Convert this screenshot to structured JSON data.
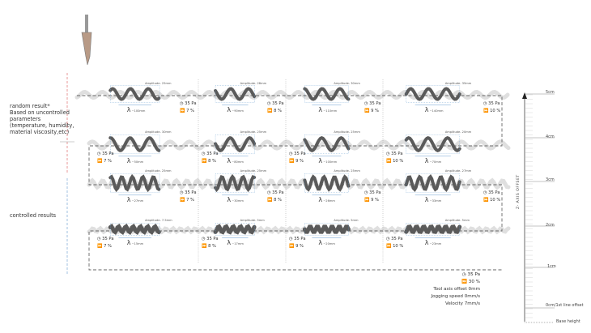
{
  "notes": {
    "random": [
      "random result*",
      "Based on uncontrolled",
      "parameters",
      "(temperature, humidity,",
      "material viscosity,etc)"
    ],
    "controlled": "controlled results"
  },
  "rows": [
    {
      "cells": [
        {
          "amplitude": "Amplitude- 25mm",
          "lambda": "~100mm",
          "pressure": "35 Pa",
          "speed": "7 %"
        },
        {
          "amplitude": "Amplitude- 28mm",
          "lambda": "~90mm",
          "pressure": "35 Pa",
          "speed": "8 %"
        },
        {
          "amplitude": "Amplitude- 30mm",
          "lambda": "~110mm",
          "pressure": "35 Pa",
          "speed": "9 %"
        },
        {
          "amplitude": "Amplitude- 35mm",
          "lambda": "~140mm",
          "pressure": "35 Pa",
          "speed": "10 %"
        }
      ]
    },
    {
      "cells": [
        {
          "amplitude": "Amplitude- 30mm",
          "lambda": "~50mm",
          "pressure": "35 Pa",
          "speed": "7 %"
        },
        {
          "amplitude": "Amplitude- 25mm",
          "lambda": "~80mm",
          "pressure": "35 Pa",
          "speed": "8 %"
        },
        {
          "amplitude": "Amplitude- 25mm",
          "lambda": "~100mm",
          "pressure": "35 Pa",
          "speed": "9 %"
        },
        {
          "amplitude": "Amplitude- 20mm",
          "lambda": "~70mm",
          "pressure": "35 Pa",
          "speed": "10 %"
        }
      ]
    },
    {
      "cells": [
        {
          "amplitude": "Amplitude- 25mm",
          "lambda": "~27mm",
          "pressure": "35 Pa",
          "speed": "7 %"
        },
        {
          "amplitude": "Amplitude- 25mm",
          "lambda": "~30mm",
          "pressure": "35 Pa",
          "speed": "8 %"
        },
        {
          "amplitude": "Amplitude- 25mm",
          "lambda": "~26mm",
          "pressure": "35 Pa",
          "speed": "9 %"
        },
        {
          "amplitude": "Amplitude- 27mm",
          "lambda": "~33mm",
          "pressure": "35 Pa",
          "speed": "10 %"
        }
      ]
    },
    {
      "cells": [
        {
          "amplitude": "Amplitude- 7.5mm",
          "lambda": "~15mm",
          "pressure": "35 Pa",
          "speed": "7 %"
        },
        {
          "amplitude": "Amplitude- 5mm",
          "lambda": "~17mm",
          "pressure": "35 Pa",
          "speed": "8 %"
        },
        {
          "amplitude": "Amplitude- 5mm",
          "lambda": "~20mm",
          "pressure": "35 Pa",
          "speed": "9 %"
        },
        {
          "amplitude": "Amplitude- 5mm",
          "lambda": "~23mm",
          "pressure": "35 Pa",
          "speed": "10 %"
        }
      ]
    }
  ],
  "lambda_symbol": "λ",
  "final": {
    "pressure": "35 Pa",
    "speed": "30 %",
    "lines": [
      "Tool axis offset 0mm",
      "Jogging speed 0mm/s",
      "Velocity 7mm/s"
    ]
  },
  "axis": {
    "title": "Z- AXIS OFFSET",
    "ticks": [
      "5cm",
      "4cm",
      "3cm",
      "2cm",
      "1cm",
      "0cm/1st line offset"
    ],
    "base": "Base height"
  },
  "icons": {
    "pressure": "clock-gauge-icon",
    "speed": "fast-forward-icon"
  },
  "colors": {
    "strand_dark": "#5a5a5a",
    "strand_light": "#dcdcdc",
    "guide": "#6a9fd0",
    "random_marker": "#e07070",
    "controlled_marker": "#7aa7d6"
  }
}
